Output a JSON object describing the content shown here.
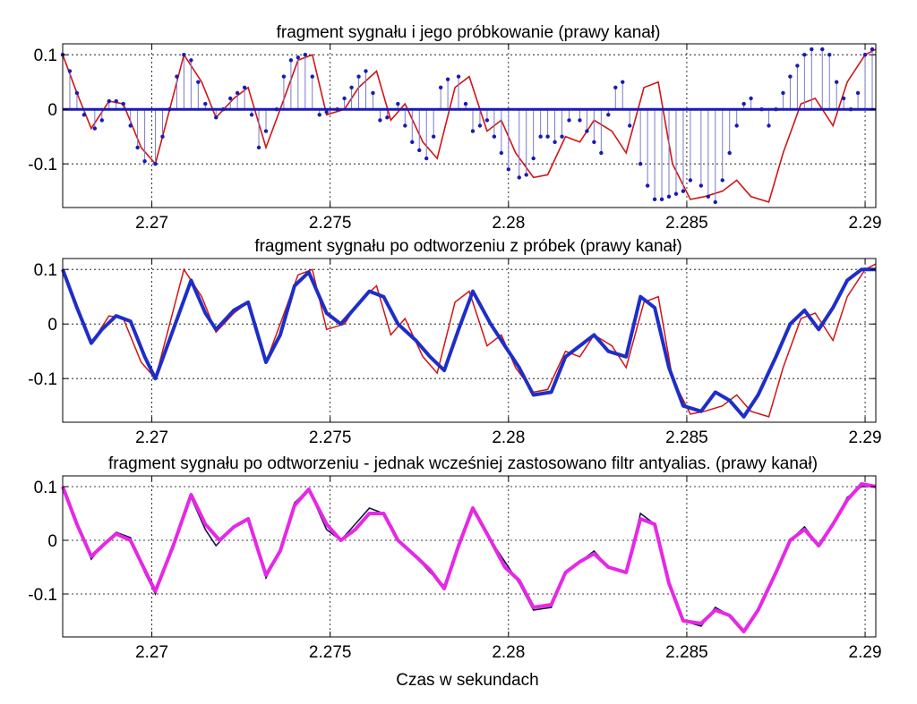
{
  "chart_data": [
    {
      "type": "line",
      "title": "fragment sygnału i jego próbkowanie (prawy kanał)",
      "xlim": [
        2.2675,
        2.2903
      ],
      "ylim": [
        -0.18,
        0.12
      ],
      "xticks": [
        2.27,
        2.275,
        2.28,
        2.285,
        2.29
      ],
      "xtick_labels": [
        "2.27",
        "2.275",
        "2.28",
        "2.285",
        "2.29"
      ],
      "yticks": [
        0.1,
        0,
        -0.1
      ],
      "ytick_labels": [
        "0.1",
        "0",
        "-0.1"
      ],
      "grid": true,
      "colors": {
        "signal": "#d21414",
        "samples": "#1a1ab4",
        "zero_line": "#1a1ab4",
        "stems": "#7a7ac8"
      },
      "series": [
        {
          "style": "line",
          "x": [
            2.2675,
            2.2679,
            2.2683,
            2.2688,
            2.2692,
            2.2697,
            2.2701,
            2.2705,
            2.2709,
            2.2714,
            2.2718,
            2.2723,
            2.2727,
            2.2732,
            2.2736,
            2.2741,
            2.2745,
            2.2749,
            2.2754,
            2.2758,
            2.2763,
            2.2767,
            2.2771,
            2.2776,
            2.278,
            2.2785,
            2.2789,
            2.2794,
            2.2798,
            2.2802,
            2.2807,
            2.2811,
            2.2816,
            2.282,
            2.2824,
            2.2829,
            2.2833,
            2.2838,
            2.2842,
            2.2846,
            2.2851,
            2.2855,
            2.286,
            2.2864,
            2.2868,
            2.2873,
            2.2877,
            2.2882,
            2.2886,
            2.2891,
            2.2895,
            2.29,
            2.2903
          ],
          "y": [
            0.1,
            0.03,
            -0.035,
            0.015,
            0.01,
            -0.07,
            -0.1,
            0.0,
            0.1,
            0.05,
            -0.015,
            0.02,
            0.04,
            -0.07,
            0.0,
            0.09,
            0.1,
            -0.01,
            0.0,
            0.04,
            0.07,
            -0.02,
            0.01,
            -0.06,
            -0.09,
            0.04,
            0.06,
            -0.04,
            -0.02,
            -0.08,
            -0.125,
            -0.12,
            -0.05,
            -0.06,
            -0.02,
            -0.04,
            -0.08,
            0.04,
            0.05,
            -0.1,
            -0.165,
            -0.16,
            -0.15,
            -0.13,
            -0.16,
            -0.17,
            -0.08,
            0.01,
            0.02,
            -0.03,
            0.05,
            0.1,
            0.11
          ]
        },
        {
          "style": "stem",
          "x": [
            2.2675,
            2.2677,
            2.2679,
            2.2681,
            2.2684,
            2.2686,
            2.2688,
            2.269,
            2.2692,
            2.2694,
            2.2696,
            2.2698,
            2.2701,
            2.2703,
            2.2705,
            2.2707,
            2.2709,
            2.2711,
            2.2713,
            2.2715,
            2.2718,
            2.272,
            2.2722,
            2.2724,
            2.2726,
            2.2728,
            2.273,
            2.2732,
            2.2735,
            2.2737,
            2.2739,
            2.2741,
            2.2743,
            2.2745,
            2.2747,
            2.2749,
            2.2752,
            2.2754,
            2.2756,
            2.2758,
            2.276,
            2.2762,
            2.2764,
            2.2766,
            2.2769,
            2.2771,
            2.2773,
            2.2775,
            2.2777,
            2.2779,
            2.2781,
            2.2783,
            2.2786,
            2.2788,
            2.279,
            2.2792,
            2.2794,
            2.2796,
            2.2798,
            2.28,
            2.2803,
            2.2805,
            2.2807,
            2.2809,
            2.2811,
            2.2813,
            2.2815,
            2.2817,
            2.282,
            2.2822,
            2.2824,
            2.2826,
            2.2828,
            2.283,
            2.2832,
            2.2834,
            2.2837,
            2.2839,
            2.2841,
            2.2843,
            2.2845,
            2.2847,
            2.2849,
            2.2851,
            2.2854,
            2.2856,
            2.2858,
            2.286,
            2.2862,
            2.2864,
            2.2866,
            2.2868,
            2.2871,
            2.2873,
            2.2875,
            2.2877,
            2.2879,
            2.2881,
            2.2883,
            2.2885,
            2.2888,
            2.289,
            2.2892,
            2.2894,
            2.2896,
            2.2898,
            2.29,
            2.2902
          ],
          "y": [
            0.1,
            0.07,
            0.03,
            -0.01,
            -0.035,
            -0.02,
            0.015,
            0.015,
            0.01,
            -0.03,
            -0.07,
            -0.095,
            -0.1,
            -0.05,
            0.0,
            0.06,
            0.1,
            0.09,
            0.05,
            0.01,
            -0.015,
            0.0,
            0.02,
            0.03,
            0.04,
            -0.01,
            -0.07,
            -0.04,
            0.0,
            0.06,
            0.09,
            0.095,
            0.1,
            0.06,
            -0.01,
            -0.005,
            0.0,
            0.02,
            0.04,
            0.06,
            0.07,
            0.03,
            -0.02,
            -0.015,
            0.01,
            -0.03,
            -0.06,
            -0.075,
            -0.09,
            -0.05,
            0.04,
            0.055,
            0.06,
            0.01,
            -0.04,
            -0.03,
            -0.02,
            -0.05,
            -0.08,
            -0.11,
            -0.125,
            -0.12,
            -0.09,
            -0.05,
            -0.05,
            -0.06,
            -0.05,
            -0.02,
            -0.02,
            -0.04,
            -0.06,
            -0.08,
            -0.01,
            0.04,
            0.05,
            -0.03,
            -0.1,
            -0.14,
            -0.165,
            -0.165,
            -0.16,
            -0.155,
            -0.15,
            -0.13,
            -0.14,
            -0.16,
            -0.17,
            -0.13,
            -0.08,
            -0.03,
            0.01,
            0.02,
            0.0,
            -0.03,
            0.0,
            0.03,
            0.06,
            0.08,
            0.1,
            0.11,
            0.11,
            0.1,
            0.05,
            0.02,
            0.0,
            0.03,
            0.1,
            0.11
          ]
        }
      ]
    },
    {
      "type": "line",
      "title": "fragment sygnału po odtworzeniu z próbek (prawy kanał)",
      "xlim": [
        2.2675,
        2.2903
      ],
      "ylim": [
        -0.18,
        0.12
      ],
      "xticks": [
        2.27,
        2.275,
        2.28,
        2.285,
        2.29
      ],
      "xtick_labels": [
        "2.27",
        "2.275",
        "2.28",
        "2.285",
        "2.29"
      ],
      "yticks": [
        0.1,
        0,
        -0.1
      ],
      "ytick_labels": [
        "0.1",
        "0",
        "-0.1"
      ],
      "grid": true,
      "colors": {
        "original": "#d21414",
        "reconstructed": "#1e2ec8"
      },
      "series": [
        {
          "style": "thin",
          "x": [
            2.2675,
            2.2679,
            2.2683,
            2.2688,
            2.2692,
            2.2697,
            2.2701,
            2.2705,
            2.2709,
            2.2714,
            2.2718,
            2.2723,
            2.2727,
            2.2732,
            2.2736,
            2.2741,
            2.2745,
            2.2749,
            2.2754,
            2.2758,
            2.2763,
            2.2767,
            2.2771,
            2.2776,
            2.278,
            2.2785,
            2.2789,
            2.2794,
            2.2798,
            2.2802,
            2.2807,
            2.2811,
            2.2816,
            2.282,
            2.2824,
            2.2829,
            2.2833,
            2.2838,
            2.2842,
            2.2846,
            2.2851,
            2.2855,
            2.286,
            2.2864,
            2.2868,
            2.2873,
            2.2877,
            2.2882,
            2.2886,
            2.2891,
            2.2895,
            2.29,
            2.2903
          ],
          "y": [
            0.1,
            0.03,
            -0.035,
            0.015,
            0.01,
            -0.07,
            -0.1,
            0.0,
            0.1,
            0.05,
            -0.015,
            0.02,
            0.04,
            -0.07,
            0.0,
            0.09,
            0.1,
            -0.01,
            0.0,
            0.04,
            0.07,
            -0.02,
            0.01,
            -0.06,
            -0.09,
            0.04,
            0.06,
            -0.04,
            -0.02,
            -0.08,
            -0.125,
            -0.12,
            -0.05,
            -0.06,
            -0.02,
            -0.04,
            -0.08,
            0.04,
            0.05,
            -0.1,
            -0.165,
            -0.16,
            -0.15,
            -0.13,
            -0.16,
            -0.17,
            -0.08,
            0.01,
            0.02,
            -0.03,
            0.05,
            0.1,
            0.11
          ]
        },
        {
          "style": "thick",
          "x": [
            2.2675,
            2.2679,
            2.2683,
            2.2686,
            2.269,
            2.2694,
            2.2698,
            2.2701,
            2.2706,
            2.2711,
            2.2715,
            2.2718,
            2.2723,
            2.2727,
            2.2732,
            2.2736,
            2.274,
            2.2744,
            2.2749,
            2.2753,
            2.2757,
            2.2761,
            2.2765,
            2.2769,
            2.2774,
            2.2778,
            2.2782,
            2.2786,
            2.279,
            2.2795,
            2.2799,
            2.2803,
            2.2807,
            2.2812,
            2.2816,
            2.282,
            2.2824,
            2.2828,
            2.2833,
            2.2837,
            2.2841,
            2.2845,
            2.2849,
            2.2854,
            2.2858,
            2.2862,
            2.2866,
            2.287,
            2.2875,
            2.2879,
            2.2883,
            2.2887,
            2.2891,
            2.2895,
            2.2899,
            2.2903
          ],
          "y": [
            0.1,
            0.03,
            -0.035,
            -0.01,
            0.015,
            0.005,
            -0.06,
            -0.1,
            -0.01,
            0.08,
            0.02,
            -0.01,
            0.025,
            0.04,
            -0.07,
            -0.02,
            0.07,
            0.095,
            0.02,
            0.0,
            0.03,
            0.06,
            0.05,
            0.0,
            -0.03,
            -0.06,
            -0.085,
            -0.01,
            0.06,
            0.0,
            -0.04,
            -0.08,
            -0.13,
            -0.125,
            -0.06,
            -0.04,
            -0.02,
            -0.05,
            -0.06,
            0.05,
            0.03,
            -0.08,
            -0.15,
            -0.16,
            -0.125,
            -0.14,
            -0.17,
            -0.13,
            -0.06,
            0.0,
            0.025,
            -0.01,
            0.03,
            0.08,
            0.1,
            0.1
          ]
        }
      ]
    },
    {
      "type": "line",
      "title": "fragment sygnału po odtworzeniu - jednak wcześniej zastosowano filtr antyalias. (prawy kanał)",
      "xlabel": "Czas w sekundach",
      "xlim": [
        2.2675,
        2.2903
      ],
      "ylim": [
        -0.18,
        0.12
      ],
      "xticks": [
        2.27,
        2.275,
        2.28,
        2.285,
        2.29
      ],
      "xtick_labels": [
        "2.27",
        "2.275",
        "2.28",
        "2.285",
        "2.29"
      ],
      "yticks": [
        0.1,
        0,
        -0.1
      ],
      "ytick_labels": [
        "0.1",
        "0",
        "-0.1"
      ],
      "grid": true,
      "colors": {
        "reference": "#141446",
        "filtered": "#e628e6"
      },
      "series": [
        {
          "style": "thin",
          "x": [
            2.2675,
            2.2679,
            2.2683,
            2.2686,
            2.269,
            2.2694,
            2.2698,
            2.2701,
            2.2706,
            2.2711,
            2.2715,
            2.2718,
            2.2723,
            2.2727,
            2.2732,
            2.2736,
            2.274,
            2.2744,
            2.2749,
            2.2753,
            2.2757,
            2.2761,
            2.2765,
            2.2769,
            2.2774,
            2.2778,
            2.2782,
            2.2786,
            2.279,
            2.2795,
            2.2799,
            2.2803,
            2.2807,
            2.2812,
            2.2816,
            2.282,
            2.2824,
            2.2828,
            2.2833,
            2.2837,
            2.2841,
            2.2845,
            2.2849,
            2.2854,
            2.2858,
            2.2862,
            2.2866,
            2.287,
            2.2875,
            2.2879,
            2.2883,
            2.2887,
            2.2891,
            2.2895,
            2.2899,
            2.2903
          ],
          "y": [
            0.1,
            0.03,
            -0.035,
            -0.01,
            0.015,
            0.005,
            -0.06,
            -0.1,
            -0.01,
            0.08,
            0.02,
            -0.01,
            0.025,
            0.04,
            -0.07,
            -0.02,
            0.07,
            0.095,
            0.02,
            0.0,
            0.03,
            0.06,
            0.05,
            0.0,
            -0.03,
            -0.06,
            -0.085,
            -0.01,
            0.06,
            0.0,
            -0.04,
            -0.08,
            -0.13,
            -0.125,
            -0.06,
            -0.04,
            -0.02,
            -0.05,
            -0.06,
            0.05,
            0.03,
            -0.08,
            -0.15,
            -0.16,
            -0.125,
            -0.14,
            -0.17,
            -0.13,
            -0.06,
            0.0,
            0.025,
            -0.01,
            0.03,
            0.08,
            0.1,
            0.1
          ]
        },
        {
          "style": "thick",
          "x": [
            2.2675,
            2.2679,
            2.2683,
            2.2687,
            2.269,
            2.2694,
            2.2698,
            2.2701,
            2.2706,
            2.2711,
            2.2715,
            2.2719,
            2.2723,
            2.2727,
            2.2732,
            2.2736,
            2.274,
            2.2744,
            2.2749,
            2.2753,
            2.2757,
            2.2761,
            2.2765,
            2.2769,
            2.2774,
            2.2778,
            2.2782,
            2.2786,
            2.279,
            2.2795,
            2.2799,
            2.2803,
            2.2807,
            2.2812,
            2.2816,
            2.282,
            2.2824,
            2.2828,
            2.2833,
            2.2837,
            2.2841,
            2.2845,
            2.2849,
            2.2854,
            2.2858,
            2.2862,
            2.2866,
            2.287,
            2.2875,
            2.2879,
            2.2883,
            2.2887,
            2.2891,
            2.2895,
            2.2899,
            2.2903
          ],
          "y": [
            0.1,
            0.03,
            -0.03,
            -0.005,
            0.012,
            0.0,
            -0.055,
            -0.095,
            -0.01,
            0.085,
            0.03,
            0.0,
            0.025,
            0.04,
            -0.065,
            -0.02,
            0.065,
            0.095,
            0.03,
            0.0,
            0.02,
            0.05,
            0.05,
            0.0,
            -0.03,
            -0.055,
            -0.09,
            -0.01,
            0.06,
            0.0,
            -0.05,
            -0.075,
            -0.125,
            -0.12,
            -0.06,
            -0.04,
            -0.025,
            -0.05,
            -0.06,
            0.04,
            0.03,
            -0.08,
            -0.15,
            -0.155,
            -0.13,
            -0.14,
            -0.17,
            -0.13,
            -0.06,
            0.0,
            0.02,
            -0.01,
            0.03,
            0.075,
            0.105,
            0.1
          ]
        }
      ]
    }
  ]
}
